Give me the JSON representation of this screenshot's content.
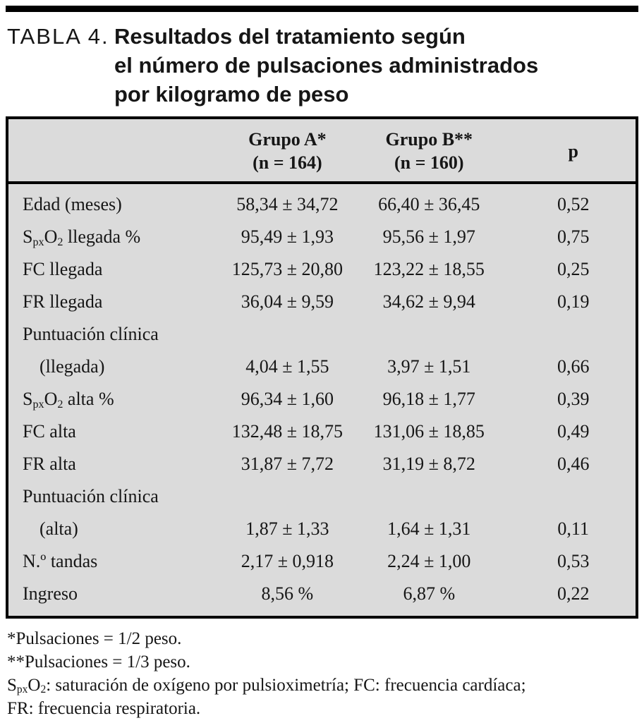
{
  "page": {
    "background_color": "#ffffff",
    "table_background_color": "#dbdbdb",
    "rule_color": "#000000",
    "text_color": "#161616"
  },
  "title": {
    "label": "TABLA 4.",
    "lines": [
      "Resultados del tratamiento según",
      "el número de pulsaciones administrados",
      "por kilogramo de peso"
    ]
  },
  "table": {
    "header": {
      "col_label": "",
      "col_a_line1": "Grupo A*",
      "col_a_line2": "(n = 164)",
      "col_b_line1": "Grupo B**",
      "col_b_line2": "(n = 160)",
      "col_p": "p"
    },
    "rows": [
      {
        "label": "Edad (meses)",
        "label2": null,
        "a": "58,34 ± 34,72",
        "b": "66,40 ± 36,45",
        "p": "0,52"
      },
      {
        "label": "S~px~O~2~ llegada %",
        "label2": null,
        "a": "95,49 ± 1,93",
        "b": "95,56 ± 1,97",
        "p": "0,75"
      },
      {
        "label": "FC llegada",
        "label2": null,
        "a": "125,73 ± 20,80",
        "b": "123,22 ± 18,55",
        "p": "0,25"
      },
      {
        "label": "FR llegada",
        "label2": null,
        "a": "36,04 ± 9,59",
        "b": "34,62 ± 9,94",
        "p": "0,19"
      },
      {
        "label": "Puntuación clínica",
        "label2": "(llegada)",
        "a": "4,04 ± 1,55",
        "b": "3,97 ± 1,51",
        "p": "0,66"
      },
      {
        "label": "S~px~O~2~ alta %",
        "label2": null,
        "a": "96,34 ± 1,60",
        "b": "96,18 ± 1,77",
        "p": "0,39"
      },
      {
        "label": "FC alta",
        "label2": null,
        "a": "132,48 ± 18,75",
        "b": "131,06 ± 18,85",
        "p": "0,49"
      },
      {
        "label": "FR alta",
        "label2": null,
        "a": "31,87 ± 7,72",
        "b": "31,19 ± 8,72",
        "p": "0,46"
      },
      {
        "label": "Puntuación clínica",
        "label2": "(alta)",
        "a": "1,87 ± 1,33",
        "b": "1,64 ± 1,31",
        "p": "0,11"
      },
      {
        "label": "N.º tandas",
        "label2": null,
        "a": "2,17 ± 0,918",
        "b": "2,24 ± 1,00",
        "p": "0,53"
      },
      {
        "label": "Ingreso",
        "label2": null,
        "a": "8,56 %",
        "b": "6,87 %",
        "p": "0,22"
      }
    ]
  },
  "footnotes": [
    "*Pulsaciones = 1/2 peso.",
    "**Pulsaciones = 1/3 peso.",
    "S~px~O~2~: saturación de oxígeno por pulsioximetría; FC: frecuencia cardíaca;",
    "FR: frecuencia respiratoria."
  ]
}
